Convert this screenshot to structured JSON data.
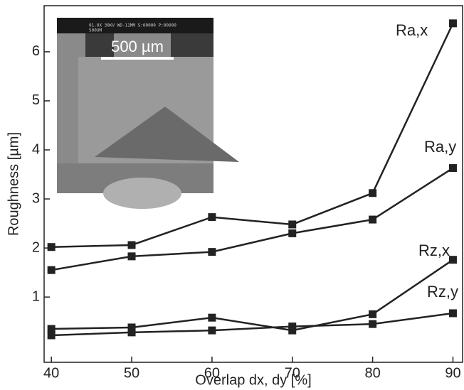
{
  "chart_data": {
    "type": "line",
    "x_label": "Overlap dx, dy [%]",
    "y_label": "Roughness [µm]",
    "x": [
      40,
      50,
      60,
      70,
      80,
      90
    ],
    "series": [
      {
        "name": "Ra,x",
        "color": "#222222",
        "values": [
          2.02,
          2.06,
          2.63,
          2.48,
          3.12,
          6.58
        ]
      },
      {
        "name": "Ra,y",
        "color": "#222222",
        "values": [
          1.55,
          1.83,
          1.92,
          2.3,
          2.58,
          3.63
        ]
      },
      {
        "name": "Rz,x",
        "color": "#222222",
        "values": [
          0.35,
          0.38,
          0.58,
          0.32,
          0.65,
          1.76
        ]
      },
      {
        "name": "Rz,y",
        "color": "#222222",
        "values": [
          0.22,
          0.28,
          0.32,
          0.4,
          0.45,
          0.67
        ]
      }
    ],
    "xlim": [
      39.1,
      91.2
    ],
    "xticks": [
      40,
      50,
      60,
      70,
      80,
      90
    ],
    "ylim": [
      -0.33,
      6.94
    ],
    "yticks": [
      1,
      2,
      3,
      4,
      5,
      6
    ],
    "grid": false,
    "inset": {
      "header": "01.0X   30KV WD-11MM   S:00000 P:00000",
      "header_scale": "500UM",
      "scale_bar": "500 µm"
    }
  }
}
